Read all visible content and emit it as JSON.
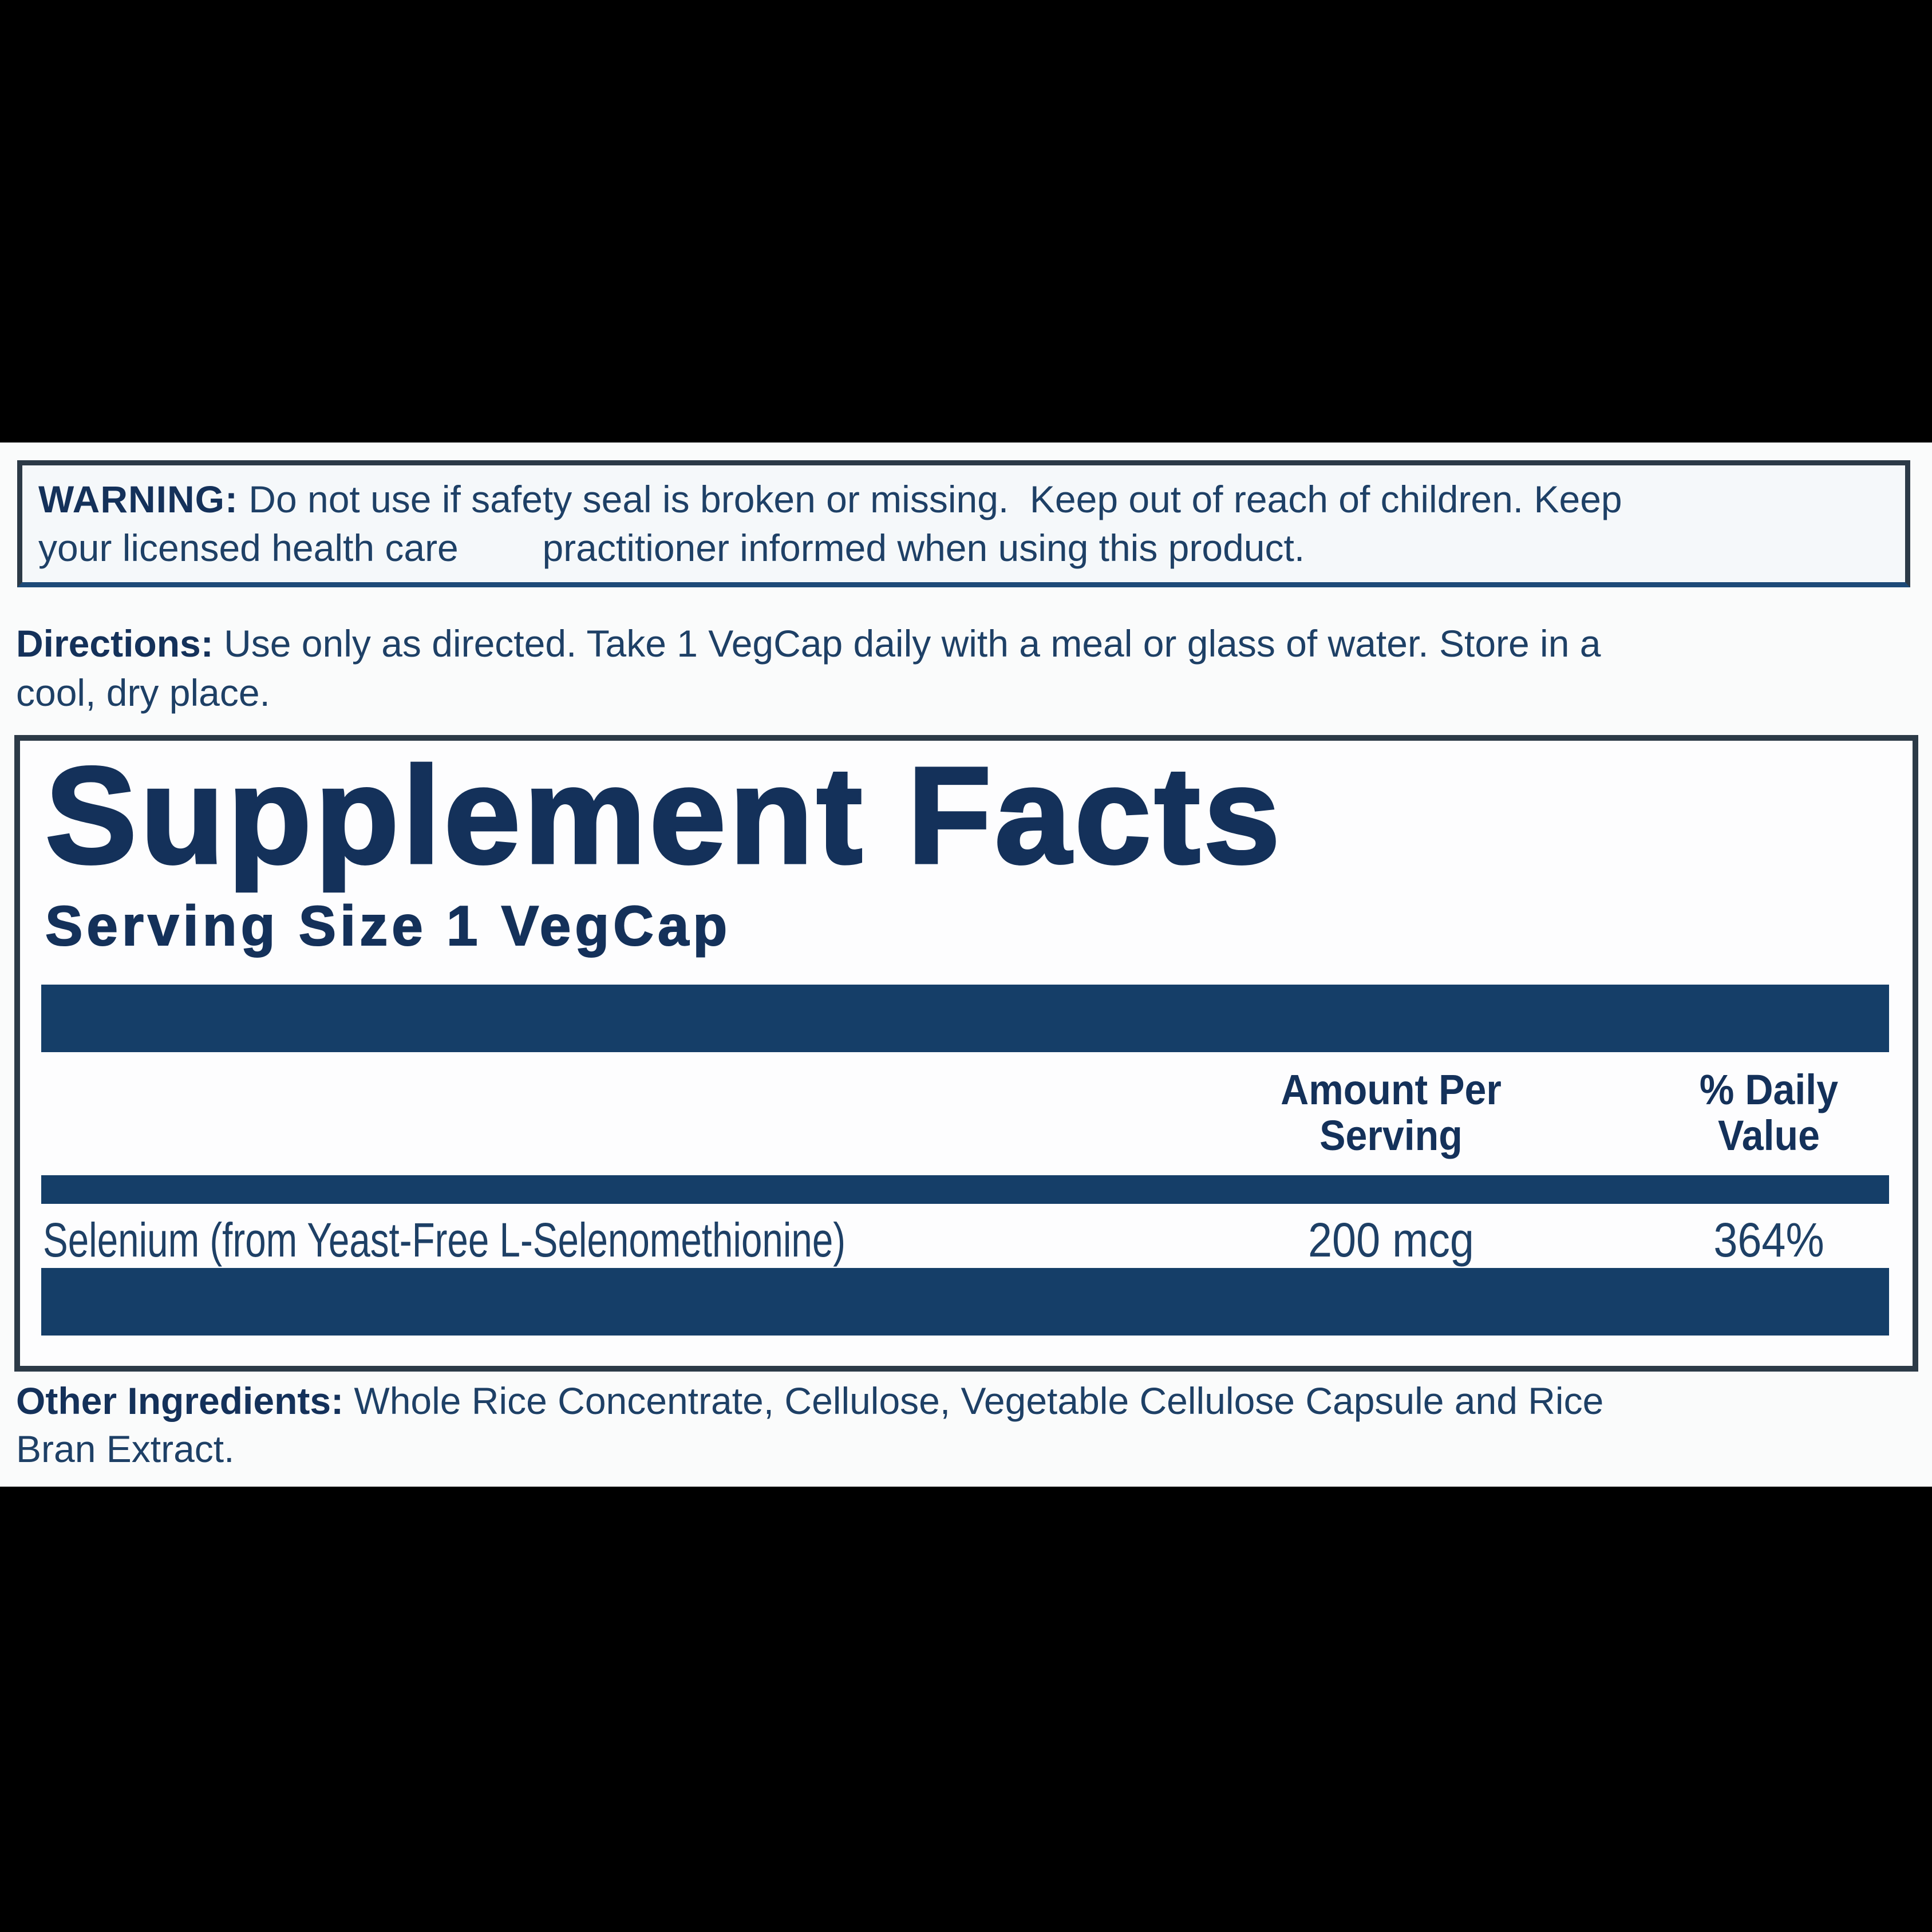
{
  "colors": {
    "page_bg": "#000000",
    "label_bg": "#fafbfb",
    "navy_text": "#1e4066",
    "navy_dark": "#14315a",
    "bar_navy": "#153e68",
    "box_border": "#2c3a47",
    "warning_bg": "#f5f8fa",
    "warning_border_bottom": "#1d4a78"
  },
  "warning": {
    "label": "WARNING:",
    "line1_rest": " Do not use if safety seal is broken or missing.  Keep out of reach of children. Keep",
    "line2": "your licensed health care        practitioner informed when using this product."
  },
  "directions": {
    "label": "Directions:",
    "line1_rest": " Use only as directed. Take 1 VegCap daily with a meal or glass of water. Store in a",
    "line2": "cool, dry place."
  },
  "supplement_facts": {
    "title": "Supplement Facts",
    "serving_size": "Serving Size 1 VegCap",
    "columns": {
      "amount": {
        "line1": "Amount Per",
        "line2": "Serving"
      },
      "daily_value": {
        "line1": "% Daily",
        "line2": "Value"
      }
    },
    "rows": [
      {
        "name": "Selenium (from Yeast-Free L-Selenomethionine)",
        "amount": "200 mcg",
        "daily_value": "364%"
      }
    ]
  },
  "other_ingredients": {
    "label": "Other Ingredients:",
    "line1_rest": " Whole Rice Concentrate, Cellulose, Vegetable Cellulose Capsule and Rice",
    "line2": "Bran Extract."
  }
}
